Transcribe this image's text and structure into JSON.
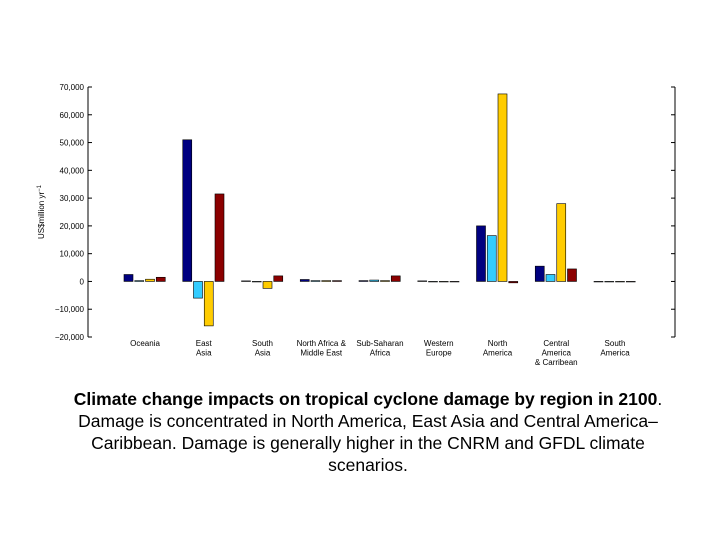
{
  "chart_data": {
    "type": "bar",
    "ylabel": "US$million yr",
    "ylabel_sup": "−1",
    "categories": [
      [
        "Oceania"
      ],
      [
        "East",
        "Asia"
      ],
      [
        "South",
        "Asia"
      ],
      [
        "North Africa &",
        "Middle East"
      ],
      [
        "Sub-Saharan",
        "Africa"
      ],
      [
        "Western",
        "Europe"
      ],
      [
        "North",
        "America"
      ],
      [
        "Central",
        "America",
        "& Carribean"
      ],
      [
        "South",
        "America"
      ]
    ],
    "series": [
      {
        "color": "#000080",
        "values": [
          2500,
          51000,
          200,
          700,
          300,
          200,
          20000,
          5500,
          0
        ]
      },
      {
        "color": "#33ccff",
        "values": [
          300,
          -6000,
          0,
          300,
          500,
          0,
          16500,
          2500,
          0
        ]
      },
      {
        "color": "#ffcc00",
        "values": [
          800,
          -16000,
          -2500,
          300,
          300,
          0,
          67500,
          28000,
          0
        ]
      },
      {
        "color": "#8b0000",
        "values": [
          1500,
          31500,
          2000,
          300,
          2000,
          0,
          -500,
          4500,
          0
        ]
      }
    ],
    "ylim": [
      -20000,
      70000
    ],
    "yticks": [
      {
        "value": -20000,
        "label": "−20,000"
      },
      {
        "value": -10000,
        "label": "−10,000"
      },
      0,
      {
        "value": 10000,
        "label": "10,000"
      },
      {
        "value": 20000,
        "label": "20,000"
      },
      {
        "value": 30000,
        "label": "30,000"
      },
      {
        "value": 40000,
        "label": "40,000"
      },
      {
        "value": 50000,
        "label": "50,000"
      },
      {
        "value": 60000,
        "label": "60,000"
      },
      {
        "value": 70000,
        "label": "70,000"
      }
    ],
    "grid": false,
    "caption_bold": "Climate change impacts on tropical cyclone damage by region in 2100",
    "caption": ". Damage is concentrated in North America, East Asia and Central America–Caribbean. Damage is generally higher in the CNRM and GFDL climate scenarios."
  }
}
